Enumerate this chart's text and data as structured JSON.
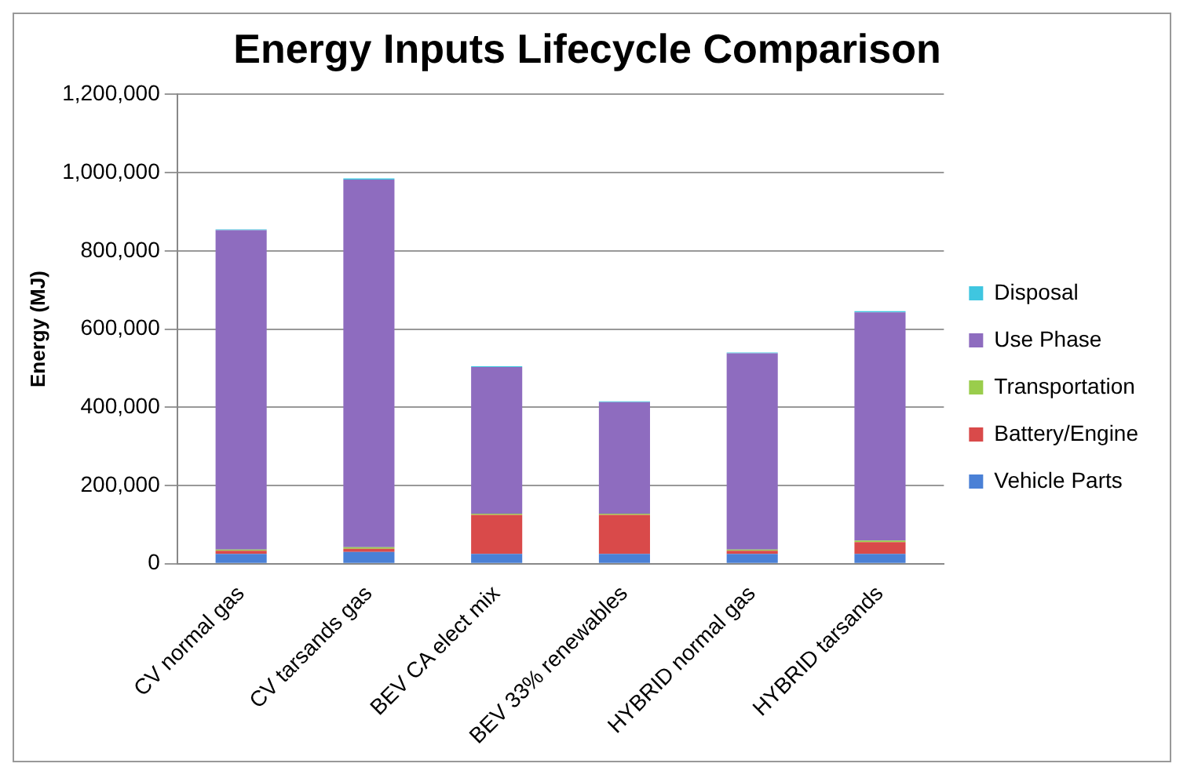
{
  "chart_data": {
    "type": "bar",
    "title": "Energy Inputs Lifecycle Comparison",
    "ylabel": "Energy (MJ)",
    "categories": [
      "CV normal gas",
      "CV tarsands gas",
      "BEV CA elect mix",
      "BEV 33% renewables",
      "HYBRID normal gas",
      "HYBRID tarsands"
    ],
    "stacked": true,
    "series": [
      {
        "name": "Vehicle Parts",
        "color": "#4a80d6",
        "values": [
          25000,
          30000,
          25000,
          25000,
          25000,
          25000
        ]
      },
      {
        "name": "Battery/Engine",
        "color": "#d94a4a",
        "values": [
          8000,
          8000,
          100000,
          100000,
          8000,
          30000
        ]
      },
      {
        "name": "Transportation",
        "color": "#9acd4c",
        "values": [
          3000,
          4000,
          3000,
          3000,
          3000,
          4000
        ]
      },
      {
        "name": "Use Phase",
        "color": "#8e6cbf",
        "values": [
          817000,
          940000,
          375000,
          285000,
          502000,
          584000
        ]
      },
      {
        "name": "Disposal",
        "color": "#3fc6e0",
        "values": [
          2000,
          3000,
          2000,
          2000,
          2000,
          3000
        ]
      }
    ],
    "ylim": [
      0,
      1200000
    ],
    "yticks": [
      {
        "value": 0,
        "label": "0"
      },
      {
        "value": 200000,
        "label": "200,000"
      },
      {
        "value": 400000,
        "label": "400,000"
      },
      {
        "value": 600000,
        "label": "600,000"
      },
      {
        "value": 800000,
        "label": "800,000"
      },
      {
        "value": 1000000,
        "label": "1,000,000"
      },
      {
        "value": 1200000,
        "label": "1,200,000"
      }
    ],
    "grid": "y",
    "legend": "right"
  }
}
